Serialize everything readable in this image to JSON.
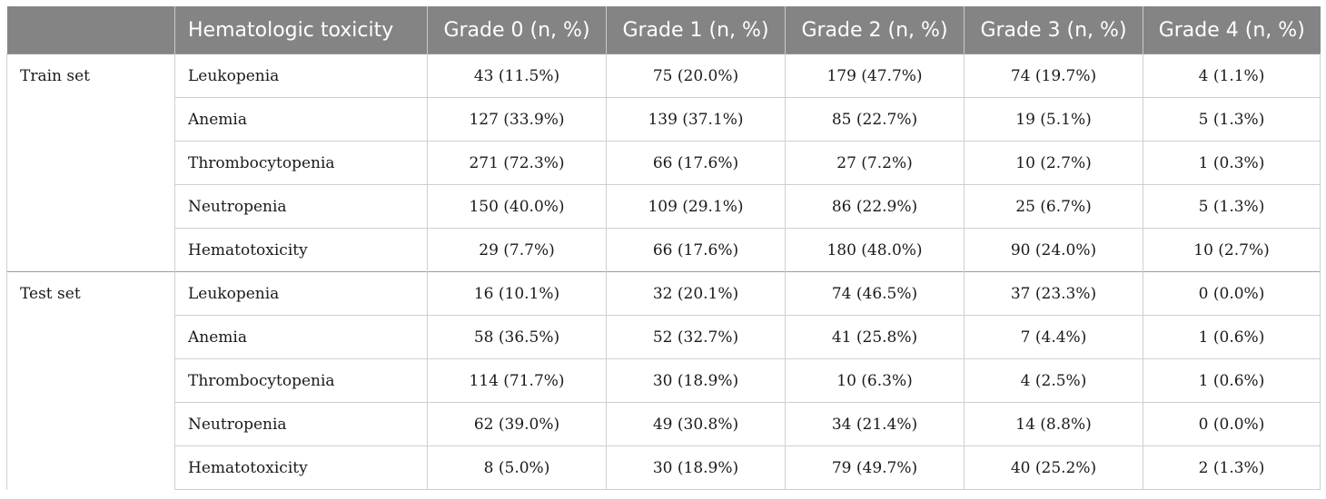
{
  "table": {
    "headers": [
      "",
      "Hematologic toxicity",
      "Grade 0 (n, %)",
      "Grade 1 (n, %)",
      "Grade 2 (n, %)",
      "Grade 3 (n, %)",
      "Grade 4 (n, %)"
    ],
    "groups": [
      {
        "label": "Train set",
        "rows": [
          {
            "name": "Leukopenia",
            "values": [
              "43 (11.5%)",
              "75 (20.0%)",
              "179 (47.7%)",
              "74 (19.7%)",
              "4 (1.1%)"
            ]
          },
          {
            "name": "Anemia",
            "values": [
              "127 (33.9%)",
              "139 (37.1%)",
              "85 (22.7%)",
              "19 (5.1%)",
              "5 (1.3%)"
            ]
          },
          {
            "name": "Thrombocytopenia",
            "values": [
              "271 (72.3%)",
              "66 (17.6%)",
              "27 (7.2%)",
              "10 (2.7%)",
              "1 (0.3%)"
            ]
          },
          {
            "name": "Neutropenia",
            "values": [
              "150 (40.0%)",
              "109 (29.1%)",
              "86 (22.9%)",
              "25 (6.7%)",
              "5 (1.3%)"
            ]
          },
          {
            "name": "Hematotoxicity",
            "values": [
              "29 (7.7%)",
              "66 (17.6%)",
              "180 (48.0%)",
              "90 (24.0%)",
              "10 (2.7%)"
            ]
          }
        ]
      },
      {
        "label": "Test set",
        "rows": [
          {
            "name": "Leukopenia",
            "values": [
              "16 (10.1%)",
              "32 (20.1%)",
              "74 (46.5%)",
              "37 (23.3%)",
              "0 (0.0%)"
            ]
          },
          {
            "name": "Anemia",
            "values": [
              "58 (36.5%)",
              "52 (32.7%)",
              "41 (25.8%)",
              "7 (4.4%)",
              "1 (0.6%)"
            ]
          },
          {
            "name": "Thrombocytopenia",
            "values": [
              "114 (71.7%)",
              "30 (18.9%)",
              "10 (6.3%)",
              "4 (2.5%)",
              "1 (0.6%)"
            ]
          },
          {
            "name": "Neutropenia",
            "values": [
              "62 (39.0%)",
              "49 (30.8%)",
              "34 (21.4%)",
              "14 (8.8%)",
              "0 (0.0%)"
            ]
          },
          {
            "name": "Hematotoxicity",
            "values": [
              "8 (5.0%)",
              "30 (18.9%)",
              "79 (49.7%)",
              "40 (25.2%)",
              "2 (1.3%)"
            ]
          }
        ]
      }
    ]
  }
}
